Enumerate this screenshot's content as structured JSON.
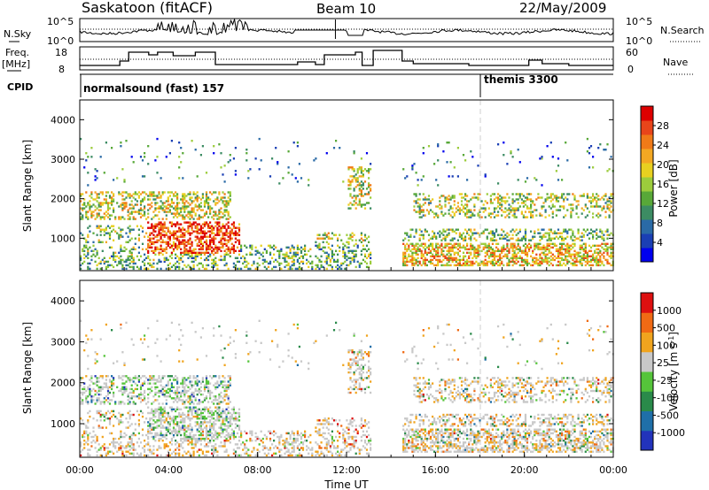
{
  "header": {
    "station": "Saskatoon (fitACF)",
    "beam": "Beam 10",
    "date": "22/May/2009"
  },
  "summary_panels": {
    "noise": {
      "left_label": "N.Sky",
      "right_label": "N.Search",
      "left_ticks": [
        "10^5",
        "10^0"
      ],
      "right_ticks": [
        "10^5",
        "10^0"
      ]
    },
    "freq": {
      "left_label_1": "Freq.",
      "left_label_2": "[MHz]",
      "right_label": "Nave",
      "left_ticks": [
        "18",
        "8"
      ],
      "right_ticks": [
        "60",
        "0"
      ]
    },
    "cpid": {
      "label": "CPID",
      "programs": [
        {
          "name": "normalsound (fast) 157",
          "start_hour": 0
        },
        {
          "name": "themis 3300",
          "start_hour": 18
        }
      ]
    }
  },
  "chart_data": [
    {
      "type": "heatmap",
      "name": "power",
      "ylabel": "Slant Range [km]",
      "xlabel": "",
      "x_range_hours": [
        0,
        24
      ],
      "ylim": [
        180,
        4500
      ],
      "yticks": [
        "1000",
        "2000",
        "3000",
        "4000"
      ],
      "colorbar": {
        "label": "Power [dB]",
        "ticks": [
          "28",
          "24",
          "20",
          "16",
          "12",
          "8",
          "4"
        ],
        "colors": [
          "#0000ee",
          "#1a3fb4",
          "#2a6aa6",
          "#3c8c63",
          "#58a838",
          "#9ccc3c",
          "#e8d020",
          "#f3a823",
          "#f07a18",
          "#e8451a",
          "#dd0000"
        ]
      }
    },
    {
      "type": "heatmap",
      "name": "velocity",
      "ylabel": "Slant Range [km]",
      "xlabel": "Time UT",
      "x_range_hours": [
        0,
        24
      ],
      "xticks": [
        "00:00",
        "04:00",
        "08:00",
        "12:00",
        "16:00",
        "20:00",
        "00:00"
      ],
      "ylim": [
        180,
        4500
      ],
      "yticks": [
        "1000",
        "2000",
        "3000",
        "4000"
      ],
      "colorbar": {
        "label": "Velocity [m s^-1]",
        "ticks": [
          "1000",
          "500",
          "100",
          "25",
          "-25",
          "-100",
          "-500",
          "-1000"
        ],
        "colors": [
          "#2233bb",
          "#1f6fa8",
          "#2a8a4a",
          "#55c43a",
          "#c8c8c8",
          "#f0a41e",
          "#f06a14",
          "#dd1010"
        ]
      }
    }
  ]
}
